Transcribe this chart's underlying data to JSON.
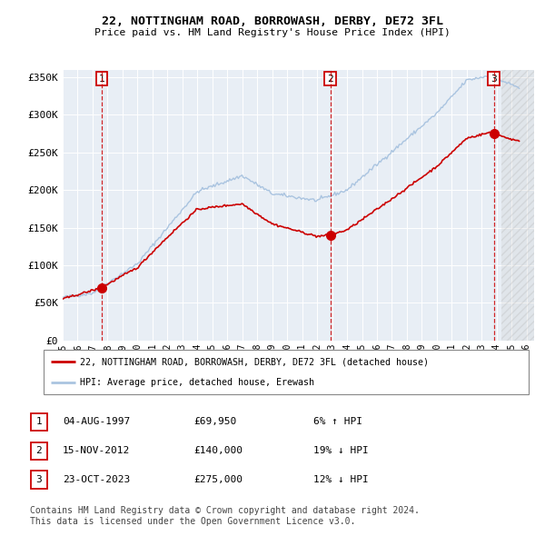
{
  "title1": "22, NOTTINGHAM ROAD, BORROWASH, DERBY, DE72 3FL",
  "title2": "Price paid vs. HM Land Registry's House Price Index (HPI)",
  "ylim": [
    0,
    360000
  ],
  "yticks": [
    0,
    50000,
    100000,
    150000,
    200000,
    250000,
    300000,
    350000
  ],
  "ytick_labels": [
    "£0",
    "£50K",
    "£100K",
    "£150K",
    "£200K",
    "£250K",
    "£300K",
    "£350K"
  ],
  "sale_prices": [
    69950,
    140000,
    275000
  ],
  "sale_years": [
    1997.59,
    2012.88,
    2023.8
  ],
  "sale_labels": [
    "1",
    "2",
    "3"
  ],
  "sale_info": [
    {
      "label": "1",
      "date": "04-AUG-1997",
      "price": "£69,950",
      "hpi": "6% ↑ HPI"
    },
    {
      "label": "2",
      "date": "15-NOV-2012",
      "price": "£140,000",
      "hpi": "19% ↓ HPI"
    },
    {
      "label": "3",
      "date": "23-OCT-2023",
      "price": "£275,000",
      "hpi": "12% ↓ HPI"
    }
  ],
  "legend_line1": "22, NOTTINGHAM ROAD, BORROWASH, DERBY, DE72 3FL (detached house)",
  "legend_line2": "HPI: Average price, detached house, Erewash",
  "footer": "Contains HM Land Registry data © Crown copyright and database right 2024.\nThis data is licensed under the Open Government Licence v3.0.",
  "hpi_color": "#aac4e0",
  "price_color": "#cc0000",
  "bg_color": "#e8eef5",
  "grid_color": "#ffffff",
  "xlim_start": 1995.0,
  "xlim_end": 2026.5,
  "hatch_start": 2024.3
}
